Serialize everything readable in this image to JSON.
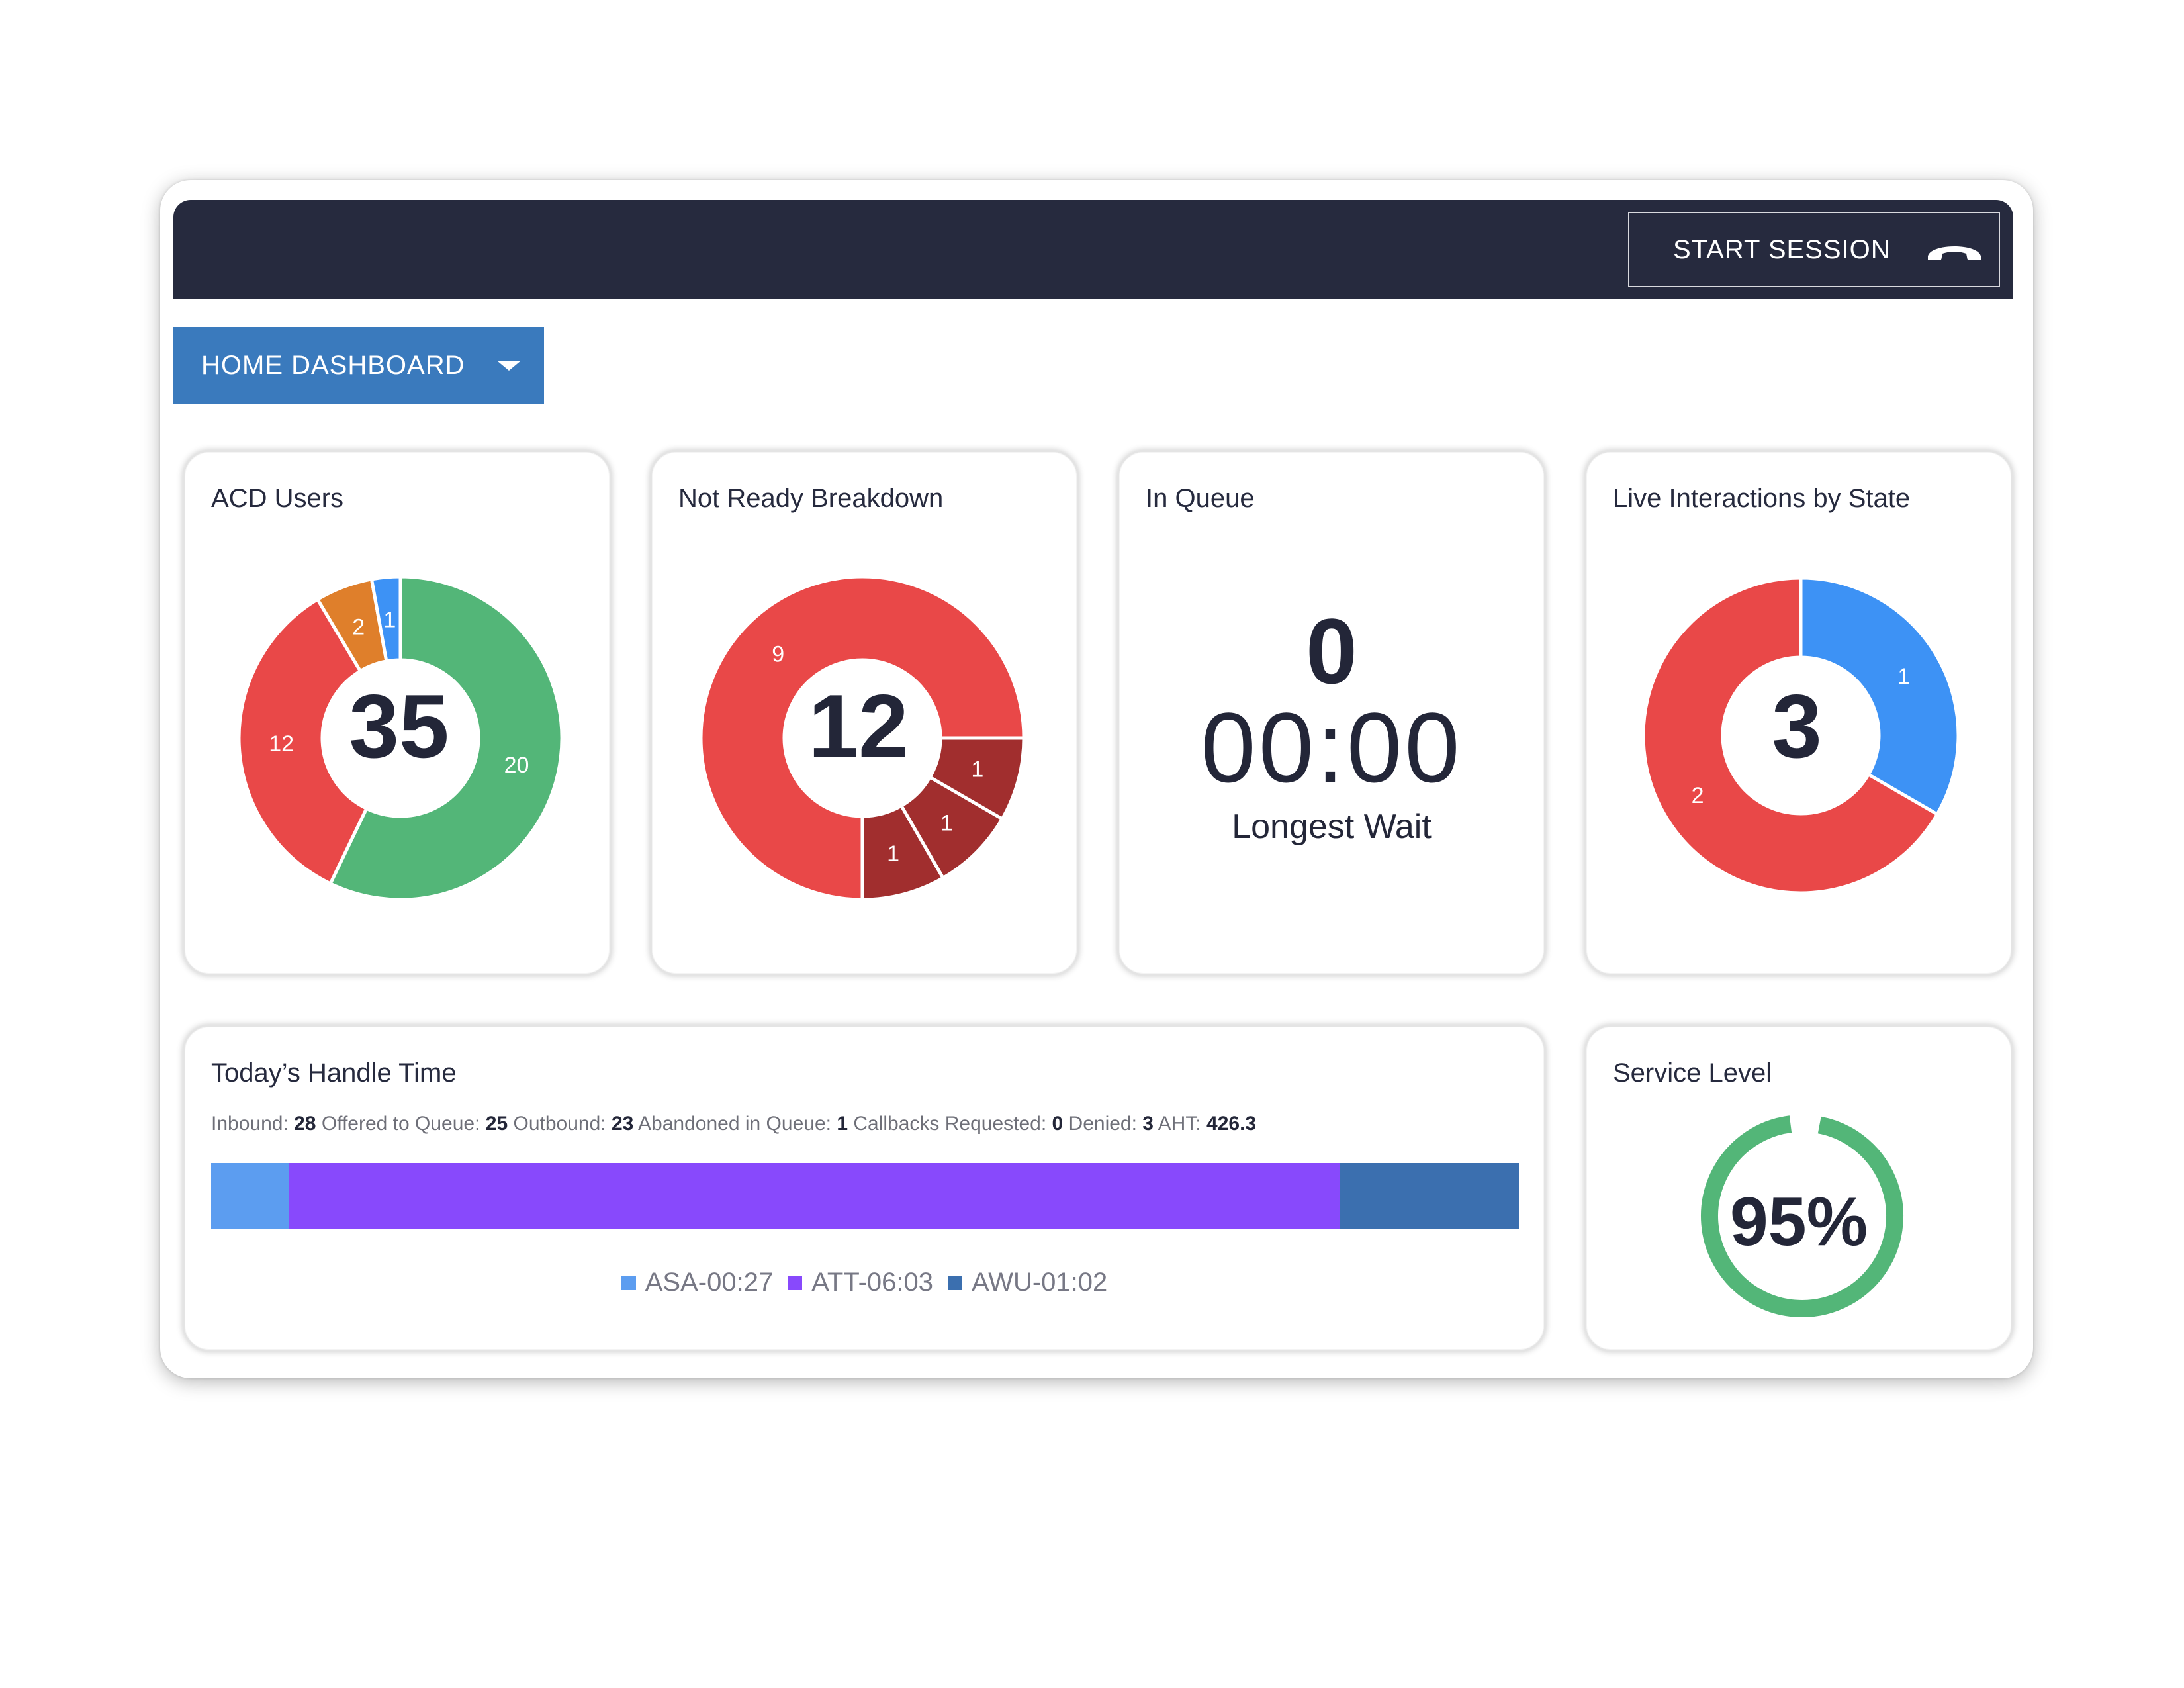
{
  "header": {
    "session_button": "START SESSION",
    "phone_icon": "phone-hangup-icon"
  },
  "dashboard_select": {
    "label": "HOME DASHBOARD",
    "icon": "caret-down-icon"
  },
  "colors": {
    "topbar": "#262a3e",
    "select": "#3a7abd",
    "green": "#53b678",
    "red": "#e94848",
    "orange": "#df7f2b",
    "blue": "#3d92f5",
    "dark_red": "#a12e2e",
    "purple": "#8849fc",
    "steel_blue": "#3b6faf",
    "light_blue": "#5c9df0"
  },
  "cards": {
    "acd_users": {
      "title": "ACD Users",
      "total": "35",
      "chart_data": {
        "type": "pie",
        "variant": "donut",
        "values": [
          20,
          12,
          2,
          1
        ],
        "labels": [
          "20",
          "12",
          "2",
          "1"
        ],
        "colors": [
          "#53b678",
          "#e94848",
          "#df7f2b",
          "#3d92f5"
        ]
      }
    },
    "not_ready": {
      "title": "Not Ready Breakdown",
      "total": "12",
      "chart_data": {
        "type": "pie",
        "variant": "donut",
        "values": [
          9,
          1,
          1,
          1
        ],
        "labels": [
          "9",
          "1",
          "1",
          "1"
        ],
        "colors": [
          "#e94848",
          "#a12e2e",
          "#a12e2e",
          "#a12e2e"
        ]
      }
    },
    "in_queue": {
      "title": "In Queue",
      "count": "0",
      "time": "00:00",
      "label": "Longest Wait"
    },
    "live_interactions": {
      "title": "Live Interactions by State",
      "total": "3",
      "chart_data": {
        "type": "pie",
        "variant": "donut",
        "values": [
          1,
          2
        ],
        "labels": [
          "1",
          "2"
        ],
        "colors": [
          "#3d92f5",
          "#e94848"
        ]
      }
    },
    "handle_time": {
      "title": "Today’s Handle Time",
      "stats": [
        {
          "label": "Inbound:",
          "value": "28"
        },
        {
          "label": "Offered to Queue:",
          "value": "25"
        },
        {
          "label": "Outbound:",
          "value": "23"
        },
        {
          "label": "Abandoned in Queue:",
          "value": "1"
        },
        {
          "label": "Callbacks Requested:",
          "value": "0"
        },
        {
          "label": "Denied:",
          "value": "3"
        },
        {
          "label": "AHT:",
          "value": "426.3"
        }
      ],
      "chart_data": {
        "type": "bar",
        "variant": "stacked-horizontal",
        "categories": [
          "ASA-00:27",
          "ATT-06:03",
          "AWU-01:02"
        ],
        "values": [
          27,
          363,
          62
        ],
        "colors": [
          "#5c9df0",
          "#8849fc",
          "#3b6faf"
        ]
      }
    },
    "service_level": {
      "title": "Service Level",
      "value": "95%",
      "fraction": 0.95,
      "color": "#53b678"
    }
  }
}
